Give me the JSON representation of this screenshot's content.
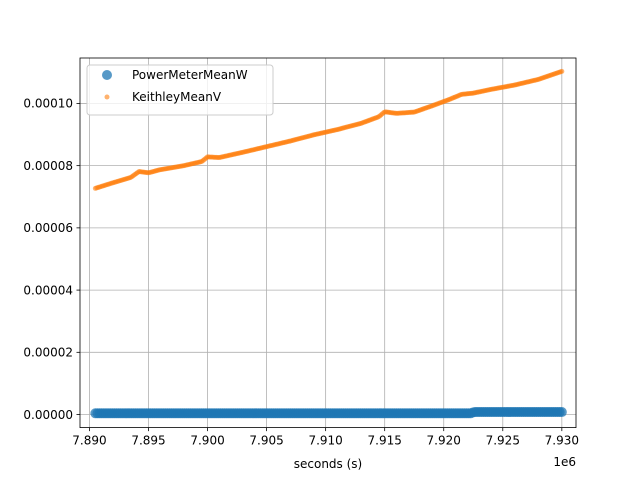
{
  "chart_data": {
    "type": "scatter",
    "title": "",
    "xlabel": "seconds (s)",
    "ylabel": "",
    "x_offset_text": "1e6",
    "xlim": [
      7.8892,
      7.9312
    ],
    "ylim": [
      -4.2e-06,
      0.0001146
    ],
    "grid": true,
    "legend_position": "upper-left",
    "x_ticks": [
      {
        "value": 7.89,
        "label": "7.890"
      },
      {
        "value": 7.895,
        "label": "7.895"
      },
      {
        "value": 7.9,
        "label": "7.900"
      },
      {
        "value": 7.905,
        "label": "7.905"
      },
      {
        "value": 7.91,
        "label": "7.910"
      },
      {
        "value": 7.915,
        "label": "7.915"
      },
      {
        "value": 7.92,
        "label": "7.920"
      },
      {
        "value": 7.925,
        "label": "7.925"
      },
      {
        "value": 7.93,
        "label": "7.930"
      }
    ],
    "y_ticks": [
      {
        "value": 0.0,
        "label": "0.00000"
      },
      {
        "value": 2e-05,
        "label": "0.00002"
      },
      {
        "value": 4e-05,
        "label": "0.00004"
      },
      {
        "value": 6e-05,
        "label": "0.00006"
      },
      {
        "value": 8e-05,
        "label": "0.00008"
      },
      {
        "value": 0.0001,
        "label": "0.00010"
      }
    ],
    "series": [
      {
        "name": "PowerMeterMeanW",
        "color": "#1f77b4",
        "marker": "circle-large",
        "x": [
          7.8905,
          7.895,
          7.9,
          7.905,
          7.91,
          7.915,
          7.92,
          7.9224,
          7.9225,
          7.925,
          7.93
        ],
        "y": [
          4e-07,
          4e-07,
          4e-07,
          4e-07,
          4e-07,
          4e-07,
          4e-07,
          4e-07,
          8e-07,
          8e-07,
          8e-07
        ]
      },
      {
        "name": "KeithleyMeanV",
        "color": "#ff7f0e",
        "marker": "circle-small",
        "x": [
          7.8905,
          7.892,
          7.8935,
          7.8942,
          7.895,
          7.896,
          7.898,
          7.8995,
          7.9,
          7.901,
          7.903,
          7.905,
          7.907,
          7.909,
          7.911,
          7.913,
          7.9145,
          7.915,
          7.916,
          7.9175,
          7.919,
          7.9205,
          7.9215,
          7.9225,
          7.924,
          7.926,
          7.928,
          7.93
        ],
        "y": [
          7.27e-05,
          7.45e-05,
          7.62e-05,
          7.81e-05,
          7.77e-05,
          7.87e-05,
          8e-05,
          8.13e-05,
          8.28e-05,
          8.26e-05,
          8.43e-05,
          8.61e-05,
          8.79e-05,
          8.99e-05,
          9.16e-05,
          9.36e-05,
          9.57e-05,
          9.73e-05,
          9.68e-05,
          9.72e-05,
          9.92e-05,
          0.0001013,
          0.0001029,
          0.0001033,
          0.0001045,
          0.0001059,
          0.0001077,
          0.0001103
        ]
      }
    ]
  }
}
